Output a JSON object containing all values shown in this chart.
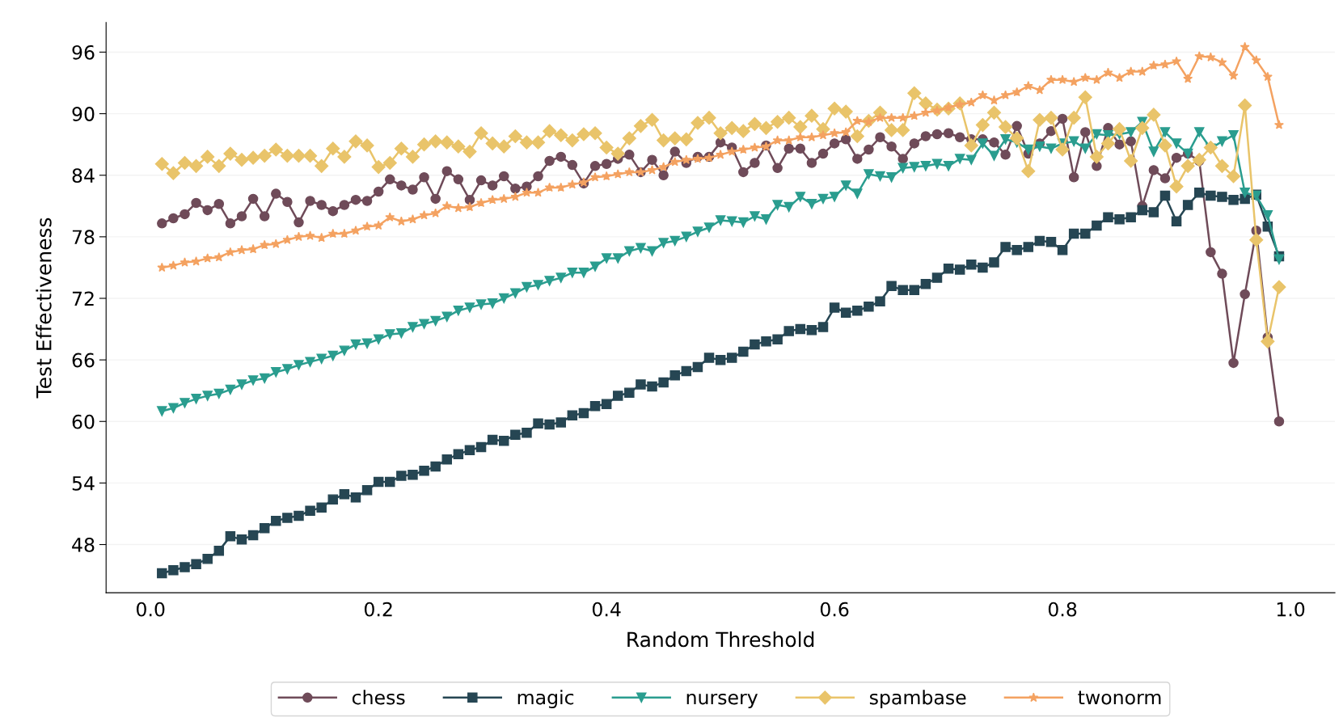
{
  "chart_data": {
    "type": "line",
    "xlabel": "Random Threshold",
    "ylabel": "Test Effectiveness",
    "x": [
      0.01,
      0.02,
      0.03,
      0.04,
      0.05,
      0.06,
      0.07,
      0.08,
      0.09,
      0.1,
      0.11,
      0.12,
      0.13,
      0.14,
      0.15,
      0.16,
      0.17,
      0.18,
      0.19,
      0.2,
      0.21,
      0.22,
      0.23,
      0.24,
      0.25,
      0.26,
      0.27,
      0.28,
      0.29,
      0.3,
      0.31,
      0.32,
      0.33,
      0.34,
      0.35,
      0.36,
      0.37,
      0.38,
      0.39,
      0.4,
      0.41,
      0.42,
      0.43,
      0.44,
      0.45,
      0.46,
      0.47,
      0.48,
      0.49,
      0.5,
      0.51,
      0.52,
      0.53,
      0.54,
      0.55,
      0.56,
      0.57,
      0.58,
      0.59,
      0.6,
      0.61,
      0.62,
      0.63,
      0.64,
      0.65,
      0.66,
      0.67,
      0.68,
      0.69,
      0.7,
      0.71,
      0.72,
      0.73,
      0.74,
      0.75,
      0.76,
      0.77,
      0.78,
      0.79,
      0.8,
      0.81,
      0.82,
      0.83,
      0.84,
      0.85,
      0.86,
      0.87,
      0.88,
      0.89,
      0.9,
      0.91,
      0.92,
      0.93,
      0.94,
      0.95,
      0.96,
      0.97,
      0.98,
      0.99
    ],
    "series": [
      {
        "name": "chess",
        "color": "#6f4b59",
        "marker": "circle",
        "values": [
          79.3,
          79.8,
          80.2,
          81.3,
          80.6,
          81.2,
          79.3,
          80.0,
          81.7,
          80.0,
          82.2,
          81.4,
          79.4,
          81.5,
          81.1,
          80.5,
          81.1,
          81.6,
          81.5,
          82.4,
          83.6,
          83.0,
          82.6,
          83.8,
          81.7,
          84.4,
          83.6,
          81.6,
          83.5,
          83.0,
          83.9,
          82.7,
          82.9,
          83.9,
          85.4,
          85.8,
          85.0,
          83.2,
          84.9,
          85.1,
          85.6,
          86.0,
          84.3,
          85.5,
          84.0,
          86.3,
          85.2,
          85.8,
          85.8,
          87.2,
          86.7,
          84.3,
          85.2,
          86.9,
          84.7,
          86.6,
          86.6,
          85.2,
          86.1,
          87.1,
          87.5,
          85.6,
          86.5,
          87.7,
          86.8,
          85.6,
          87.1,
          87.8,
          88.0,
          88.1,
          87.7,
          87.5,
          87.5,
          87.2,
          86.0,
          88.8,
          86.1,
          87.1,
          88.3,
          89.5,
          83.8,
          88.2,
          84.9,
          88.6,
          87.0,
          87.3,
          81.0,
          84.5,
          83.7,
          85.7,
          86.1,
          85.4,
          76.5,
          74.4,
          65.7,
          72.4,
          78.6,
          68.2,
          60.0
        ]
      },
      {
        "name": "magic",
        "color": "#264653",
        "marker": "square",
        "values": [
          45.2,
          45.5,
          45.8,
          46.1,
          46.6,
          47.4,
          48.8,
          48.5,
          48.9,
          49.6,
          50.3,
          50.6,
          50.8,
          51.3,
          51.6,
          52.4,
          52.9,
          52.6,
          53.3,
          54.1,
          54.1,
          54.7,
          54.8,
          55.2,
          55.6,
          56.3,
          56.8,
          57.2,
          57.5,
          58.2,
          58.1,
          58.7,
          58.9,
          59.8,
          59.7,
          59.9,
          60.6,
          60.8,
          61.5,
          61.7,
          62.5,
          62.8,
          63.6,
          63.4,
          63.8,
          64.5,
          64.9,
          65.3,
          66.2,
          66.0,
          66.2,
          66.8,
          67.5,
          67.8,
          68.0,
          68.8,
          69.0,
          68.9,
          69.2,
          71.1,
          70.6,
          70.8,
          71.2,
          71.7,
          73.2,
          72.8,
          72.8,
          73.4,
          74.0,
          74.9,
          74.8,
          75.3,
          75.0,
          75.5,
          77.0,
          76.7,
          77.0,
          77.6,
          77.5,
          76.7,
          78.3,
          78.3,
          79.1,
          79.9,
          79.7,
          79.9,
          80.6,
          80.4,
          82.0,
          79.5,
          81.1,
          82.3,
          82.0,
          81.9,
          81.6,
          81.7,
          82.1,
          79.0,
          76.1
        ]
      },
      {
        "name": "nursery",
        "color": "#2a9d8f",
        "marker": "triangle",
        "values": [
          61.0,
          61.3,
          61.8,
          62.2,
          62.5,
          62.7,
          63.1,
          63.6,
          64.0,
          64.2,
          64.8,
          65.1,
          65.5,
          65.8,
          66.1,
          66.4,
          66.9,
          67.5,
          67.6,
          68.0,
          68.5,
          68.6,
          69.2,
          69.5,
          69.8,
          70.2,
          70.8,
          71.1,
          71.4,
          71.5,
          72.0,
          72.5,
          73.1,
          73.3,
          73.7,
          74.0,
          74.5,
          74.5,
          75.1,
          75.9,
          75.9,
          76.6,
          76.9,
          76.6,
          77.4,
          77.6,
          78.0,
          78.5,
          78.9,
          79.6,
          79.5,
          79.4,
          80.0,
          79.7,
          81.1,
          80.9,
          81.9,
          81.2,
          81.7,
          81.9,
          83.0,
          82.2,
          84.1,
          83.9,
          83.8,
          84.7,
          84.8,
          84.9,
          85.1,
          84.9,
          85.6,
          85.5,
          87.1,
          85.9,
          87.5,
          87.2,
          86.5,
          86.8,
          86.6,
          87.1,
          87.3,
          86.6,
          88.0,
          87.9,
          88.0,
          88.2,
          89.2,
          86.3,
          88.2,
          87.1,
          86.1,
          88.2,
          86.6,
          87.3,
          87.9,
          82.3,
          82.0,
          80.1,
          75.8
        ]
      },
      {
        "name": "spambase",
        "color": "#e9c46a",
        "marker": "diamond",
        "values": [
          85.1,
          84.2,
          85.2,
          84.9,
          85.8,
          84.9,
          86.1,
          85.5,
          85.7,
          85.9,
          86.5,
          85.9,
          85.9,
          85.9,
          84.9,
          86.6,
          85.8,
          87.3,
          86.9,
          84.8,
          85.2,
          86.6,
          85.8,
          87.0,
          87.3,
          87.2,
          86.8,
          86.3,
          88.1,
          87.1,
          86.8,
          87.8,
          87.2,
          87.2,
          88.3,
          87.9,
          87.4,
          88.0,
          88.1,
          86.7,
          86.1,
          87.6,
          88.8,
          89.4,
          87.4,
          87.6,
          87.5,
          89.1,
          89.6,
          88.1,
          88.6,
          88.3,
          89.0,
          88.6,
          89.2,
          89.6,
          88.7,
          89.8,
          88.5,
          90.5,
          90.2,
          87.8,
          89.3,
          90.1,
          88.4,
          88.4,
          92.0,
          91.0,
          90.4,
          90.5,
          91.0,
          86.9,
          88.9,
          90.1,
          88.7,
          87.6,
          84.4,
          89.4,
          89.6,
          86.5,
          89.6,
          91.6,
          85.8,
          87.1,
          88.5,
          85.4,
          88.6,
          89.9,
          86.9,
          82.9,
          84.9,
          85.5,
          86.7,
          84.9,
          83.9,
          90.8,
          77.7,
          67.8,
          73.1
        ]
      },
      {
        "name": "twonorm",
        "color": "#f4a261",
        "marker": "star",
        "values": [
          75.0,
          75.2,
          75.5,
          75.6,
          75.9,
          76.0,
          76.5,
          76.7,
          76.8,
          77.2,
          77.3,
          77.7,
          78.0,
          78.1,
          77.9,
          78.3,
          78.3,
          78.6,
          79.0,
          79.1,
          79.9,
          79.5,
          79.7,
          80.1,
          80.3,
          81.0,
          80.8,
          80.9,
          81.3,
          81.6,
          81.7,
          81.9,
          82.3,
          82.3,
          82.8,
          82.8,
          83.1,
          83.3,
          83.8,
          83.9,
          84.1,
          84.3,
          84.3,
          84.5,
          84.8,
          85.3,
          85.5,
          85.6,
          85.7,
          86.0,
          86.3,
          86.5,
          86.7,
          86.8,
          87.4,
          87.4,
          87.7,
          87.7,
          87.9,
          88.1,
          88.2,
          89.3,
          89.2,
          89.6,
          89.6,
          89.6,
          89.8,
          90.1,
          90.3,
          90.6,
          90.9,
          91.1,
          91.8,
          91.3,
          91.8,
          92.1,
          92.7,
          92.3,
          93.3,
          93.3,
          93.1,
          93.5,
          93.3,
          94.0,
          93.5,
          94.1,
          94.1,
          94.7,
          94.8,
          95.1,
          93.4,
          95.6,
          95.5,
          95.0,
          93.7,
          96.5,
          95.2,
          93.6,
          88.9
        ]
      }
    ],
    "xlim": [
      -0.039,
      1.039
    ],
    "xticks": [
      {
        "value": 0,
        "label": "0.0"
      },
      {
        "value": 0.2,
        "label": "0.2"
      },
      {
        "value": 0.4,
        "label": "0.4"
      },
      {
        "value": 0.6,
        "label": "0.6"
      },
      {
        "value": 0.8,
        "label": "0.8"
      },
      {
        "value": 1,
        "label": "1.0"
      }
    ],
    "ylim": [
      43.3,
      98.9
    ],
    "yticks": [
      48,
      54,
      60,
      66,
      72,
      78,
      84,
      90,
      96
    ],
    "grid": "y",
    "legend": "bottom",
    "line_style": "solid"
  }
}
